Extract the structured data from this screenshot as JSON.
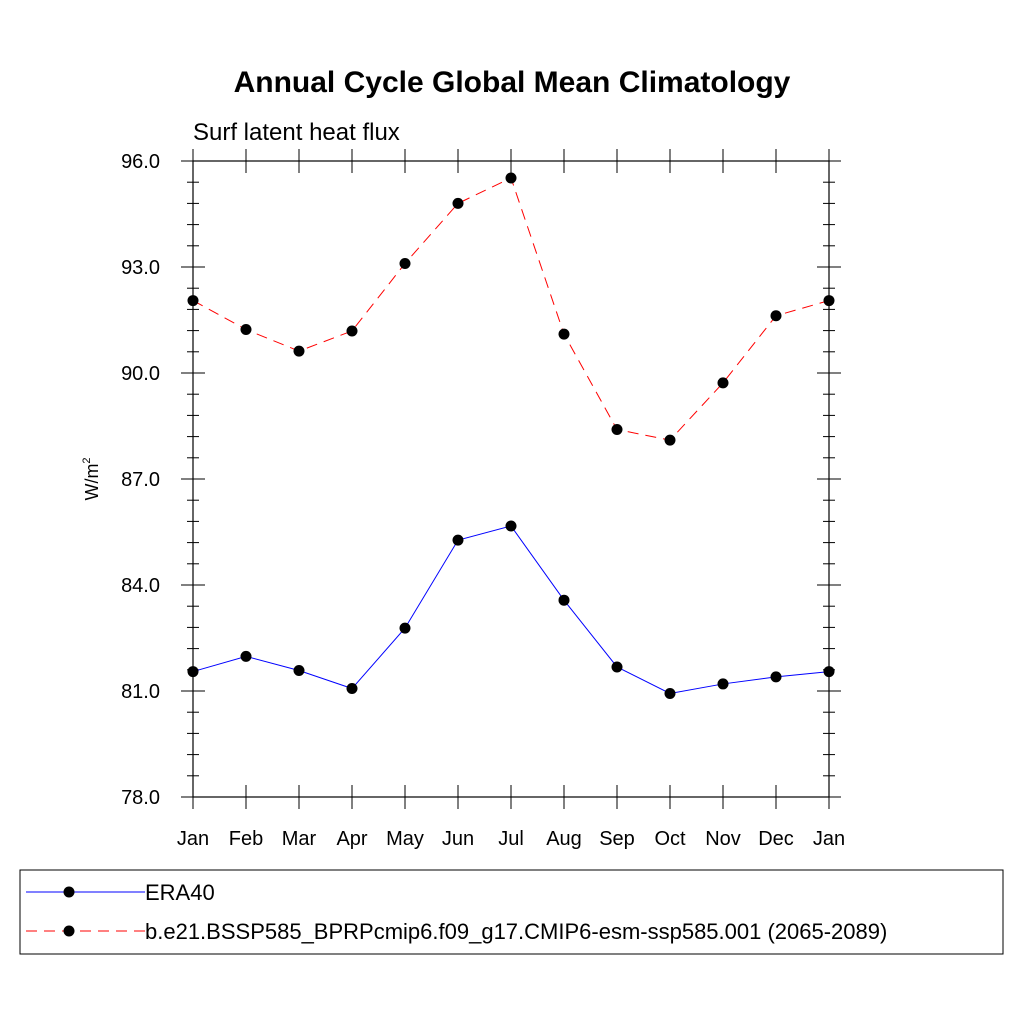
{
  "chart_data": {
    "type": "line",
    "title": "Annual Cycle Global Mean Climatology",
    "subtitle": "Surf latent heat flux",
    "xlabel": "",
    "ylabel": "W/m",
    "ylabel_superscript": "2",
    "categories": [
      "Jan",
      "Feb",
      "Mar",
      "Apr",
      "May",
      "Jun",
      "Jul",
      "Aug",
      "Sep",
      "Oct",
      "Nov",
      "Dec",
      "Jan"
    ],
    "ylim": [
      78.0,
      96.0
    ],
    "yticks": [
      "78.0",
      "81.0",
      "84.0",
      "87.0",
      "90.0",
      "93.0",
      "96.0"
    ],
    "grid": false,
    "legend_position": "bottom",
    "series": [
      {
        "name": "ERA40",
        "color": "#0000ff",
        "dash": "solid",
        "marker": "circle",
        "values": [
          81.55,
          81.98,
          81.58,
          81.07,
          82.78,
          85.27,
          85.67,
          83.57,
          81.68,
          80.93,
          81.2,
          81.4,
          81.55
        ]
      },
      {
        "name": "b.e21.BSSP585_BPRPcmip6.f09_g17.CMIP6-esm-ssp585.001 (2065-2089)",
        "color": "#ff0000",
        "dash": "dashed",
        "marker": "circle",
        "values": [
          92.05,
          91.23,
          90.62,
          91.19,
          93.1,
          94.8,
          95.52,
          91.1,
          88.4,
          88.1,
          89.72,
          91.62,
          92.05
        ]
      }
    ]
  }
}
